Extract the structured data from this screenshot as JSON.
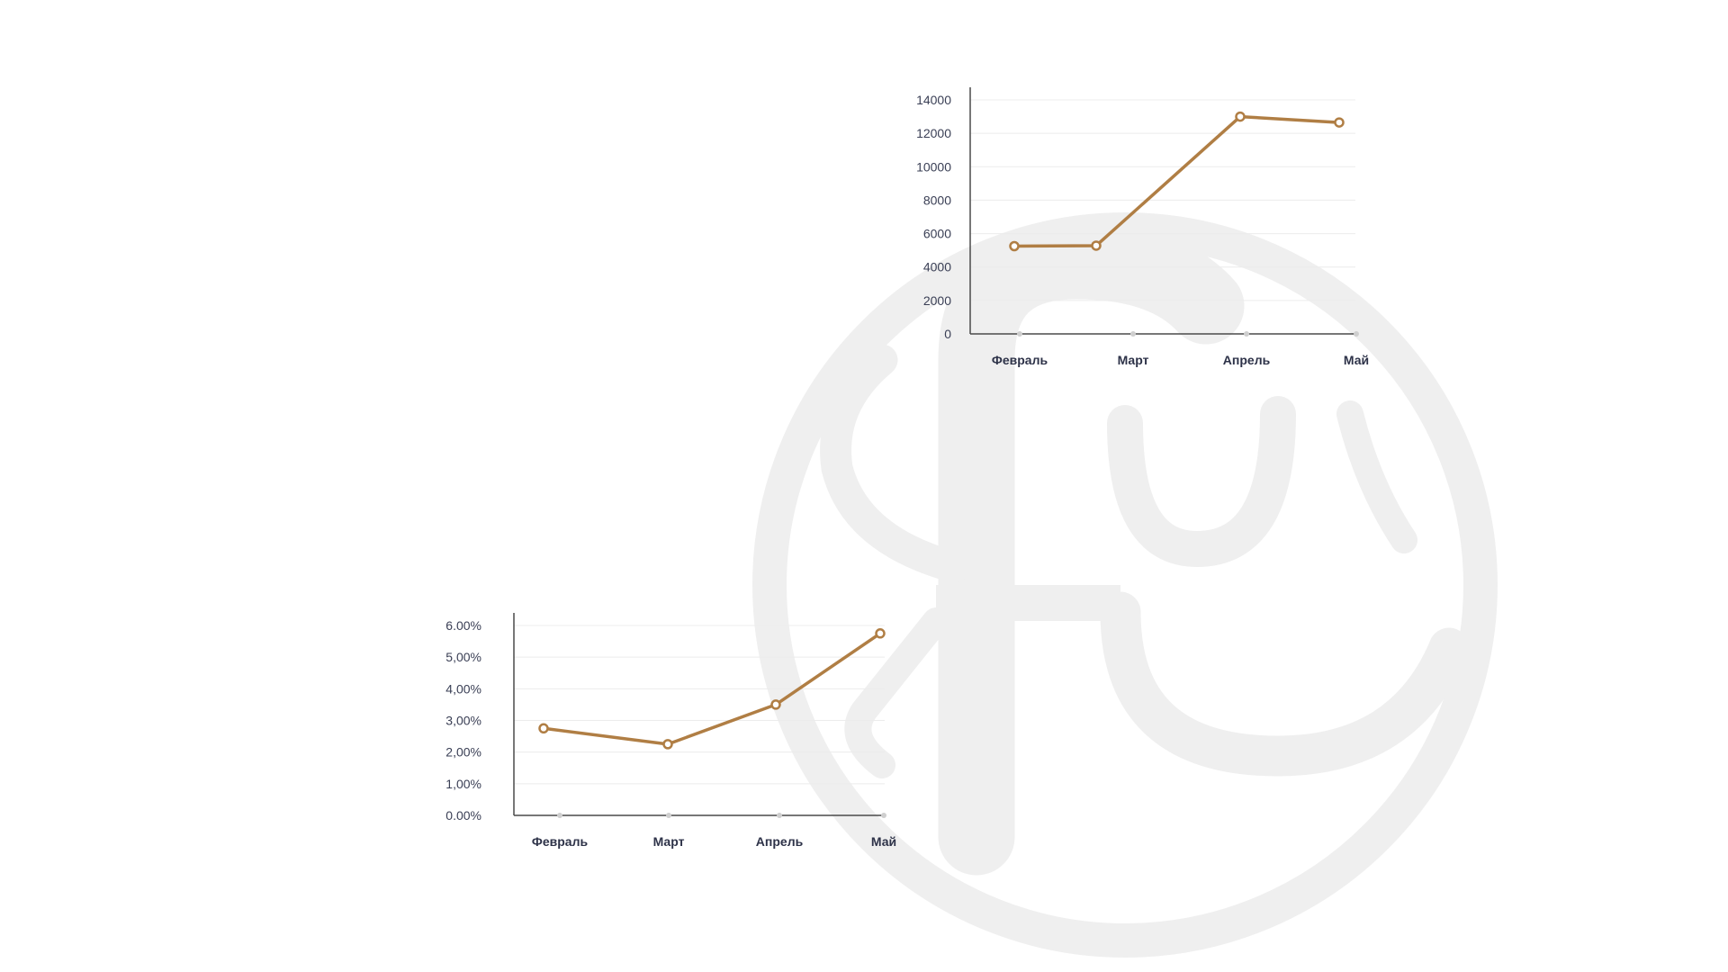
{
  "colors": {
    "line": "#b07e44",
    "axis": "#4a4a4a",
    "grid": "#ececec",
    "watermark": "#efefef",
    "tick_text": "#3a3f55"
  },
  "watermark": {
    "icon": "logo-monogram-watermark"
  },
  "chart_data": [
    {
      "type": "line",
      "categories": [
        "Февраль",
        "Март",
        "Апрель",
        "Май"
      ],
      "values": [
        5250,
        5280,
        13000,
        12650
      ],
      "ytick_labels": [
        "0",
        "2000",
        "4000",
        "6000",
        "8000",
        "10000",
        "12000",
        "14000"
      ],
      "ytick_values": [
        0,
        2000,
        4000,
        6000,
        8000,
        10000,
        12000,
        14000
      ],
      "ylim": [
        0,
        14000
      ],
      "grid": true,
      "title": "",
      "xlabel": "",
      "ylabel": ""
    },
    {
      "type": "line",
      "categories": [
        "Февраль",
        "Март",
        "Апрель",
        "Май"
      ],
      "values": [
        2.75,
        2.25,
        3.5,
        5.75
      ],
      "ytick_labels": [
        "0.00%",
        "1,00%",
        "2,00%",
        "3,00%",
        "4,00%",
        "5,00%",
        "6.00%"
      ],
      "ytick_values": [
        0,
        1,
        2,
        3,
        4,
        5,
        6
      ],
      "ylim": [
        0,
        6
      ],
      "grid": true,
      "title": "",
      "xlabel": "",
      "ylabel": ""
    }
  ]
}
